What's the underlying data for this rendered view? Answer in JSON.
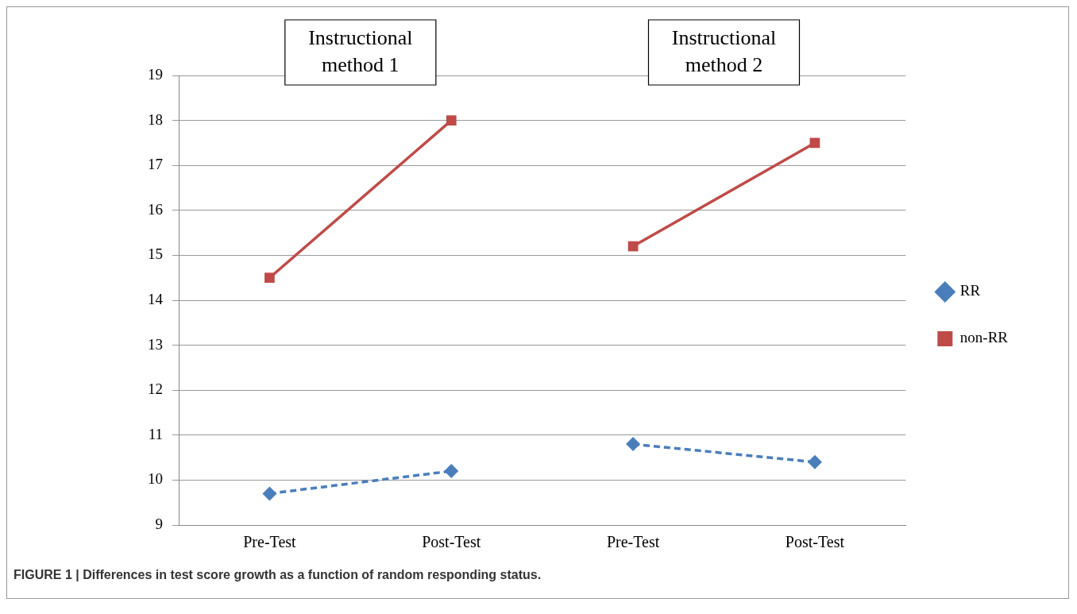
{
  "chart_data": {
    "type": "line",
    "title": "FIGURE 1 | Differences in test score growth as a function of random responding status.",
    "categories": [
      "Pre-Test",
      "Post-Test",
      "Pre-Test",
      "Post-Test"
    ],
    "series": [
      {
        "name": "RR",
        "color": "#4a7ebb",
        "values": [
          9.7,
          10.2,
          null,
          null
        ],
        "marker": "diamond",
        "line_style": "dashed"
      },
      {
        "color": "#4a7ebb",
        "values": [
          null,
          null,
          10.8,
          10.4
        ],
        "marker": "diamond",
        "line_style": "dashed"
      },
      {
        "name": "non-RR",
        "color": "#be4b48",
        "values": [
          14.5,
          18.0,
          null,
          null
        ],
        "marker": "square",
        "line_style": "solid"
      },
      {
        "color": "#be4b48",
        "values": [
          null,
          null,
          15.2,
          17.5
        ],
        "marker": "square",
        "line_style": "solid"
      }
    ],
    "ylim": [
      9,
      19
    ],
    "yticks": [
      9,
      10,
      11,
      12,
      13,
      14,
      15,
      16,
      17,
      18,
      19
    ],
    "grid": "y",
    "legend": "right",
    "annotations": [
      "Instructional method 1",
      "Instructional method 2"
    ]
  }
}
